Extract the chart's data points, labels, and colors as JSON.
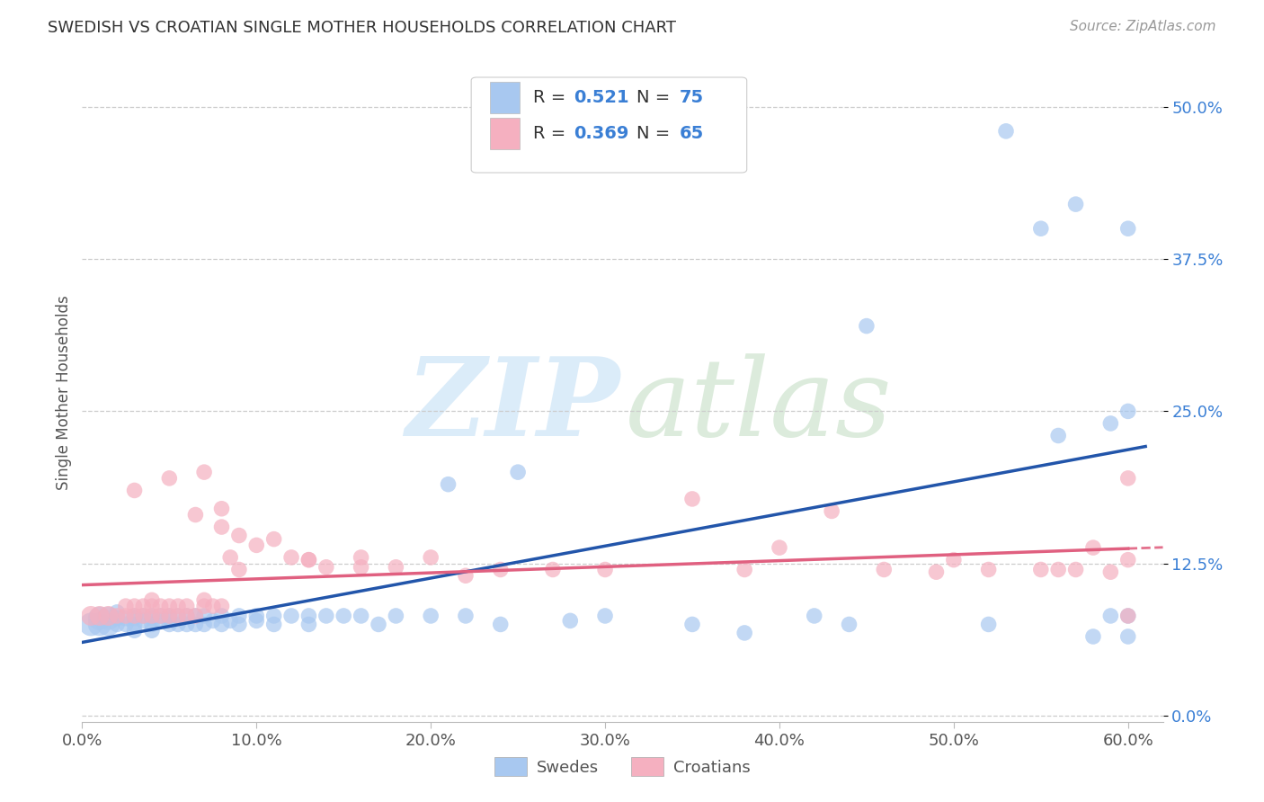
{
  "title": "SWEDISH VS CROATIAN SINGLE MOTHER HOUSEHOLDS CORRELATION CHART",
  "source": "Source: ZipAtlas.com",
  "ylabel": "Single Mother Households",
  "xlim": [
    0.0,
    0.62
  ],
  "ylim": [
    -0.005,
    0.535
  ],
  "yticks": [
    0.0,
    0.125,
    0.25,
    0.375,
    0.5
  ],
  "ytick_labels": [
    "0.0%",
    "12.5%",
    "25.0%",
    "37.5%",
    "50.0%"
  ],
  "xticks": [
    0.0,
    0.1,
    0.2,
    0.3,
    0.4,
    0.5,
    0.6
  ],
  "xtick_labels": [
    "0.0%",
    "10.0%",
    "20.0%",
    "30.0%",
    "40.0%",
    "50.0%",
    "60.0%"
  ],
  "swedes_color": "#a8c8f0",
  "croatians_color": "#f5b0c0",
  "swedes_line_color": "#2255aa",
  "croatians_line_color": "#e06080",
  "blue_text_color": "#3a7fd5",
  "R_swedes": 0.521,
  "N_swedes": 75,
  "R_croatians": 0.369,
  "N_croatians": 65,
  "background_color": "#ffffff",
  "grid_color": "#cccccc",
  "swedes_x": [
    0.005,
    0.01,
    0.01,
    0.015,
    0.015,
    0.02,
    0.02,
    0.02,
    0.025,
    0.025,
    0.03,
    0.03,
    0.03,
    0.03,
    0.035,
    0.035,
    0.04,
    0.04,
    0.04,
    0.04,
    0.045,
    0.045,
    0.05,
    0.05,
    0.05,
    0.055,
    0.055,
    0.06,
    0.06,
    0.065,
    0.065,
    0.07,
    0.07,
    0.075,
    0.08,
    0.08,
    0.085,
    0.09,
    0.09,
    0.1,
    0.1,
    0.11,
    0.11,
    0.12,
    0.13,
    0.13,
    0.14,
    0.15,
    0.16,
    0.17,
    0.18,
    0.2,
    0.22,
    0.24,
    0.28,
    0.3,
    0.35,
    0.38,
    0.42,
    0.44,
    0.52,
    0.53,
    0.55,
    0.57,
    0.58,
    0.59,
    0.6,
    0.6,
    0.6,
    0.6,
    0.25,
    0.21,
    0.45,
    0.56,
    0.59
  ],
  "swedes_y": [
    0.075,
    0.075,
    0.08,
    0.075,
    0.08,
    0.075,
    0.08,
    0.085,
    0.075,
    0.08,
    0.075,
    0.08,
    0.082,
    0.07,
    0.078,
    0.082,
    0.075,
    0.08,
    0.082,
    0.07,
    0.078,
    0.082,
    0.075,
    0.08,
    0.082,
    0.075,
    0.082,
    0.075,
    0.082,
    0.075,
    0.082,
    0.075,
    0.082,
    0.078,
    0.075,
    0.082,
    0.078,
    0.075,
    0.082,
    0.078,
    0.082,
    0.075,
    0.082,
    0.082,
    0.082,
    0.075,
    0.082,
    0.082,
    0.082,
    0.075,
    0.082,
    0.082,
    0.082,
    0.075,
    0.078,
    0.082,
    0.075,
    0.068,
    0.082,
    0.075,
    0.075,
    0.48,
    0.4,
    0.42,
    0.065,
    0.24,
    0.25,
    0.082,
    0.4,
    0.065,
    0.2,
    0.19,
    0.32,
    0.23,
    0.082
  ],
  "swedes_large": [
    0,
    1,
    0,
    0,
    0,
    0,
    0,
    0,
    0,
    0,
    0,
    0,
    0,
    0,
    0,
    0,
    0,
    0,
    0,
    0,
    0,
    0,
    0,
    0,
    0,
    0,
    0,
    0,
    0,
    0,
    0,
    0,
    0,
    0,
    0,
    0,
    0,
    0,
    0,
    0,
    0,
    0,
    0,
    0,
    0,
    0,
    0,
    0,
    0,
    0,
    0,
    0,
    0,
    0,
    0,
    0,
    0,
    0,
    0,
    0,
    0,
    0,
    0,
    0,
    0,
    0,
    0,
    0,
    0,
    0,
    0,
    0,
    0,
    0,
    0
  ],
  "croatians_x": [
    0.005,
    0.01,
    0.015,
    0.02,
    0.025,
    0.025,
    0.03,
    0.03,
    0.035,
    0.035,
    0.04,
    0.04,
    0.04,
    0.045,
    0.045,
    0.05,
    0.05,
    0.055,
    0.055,
    0.06,
    0.06,
    0.065,
    0.07,
    0.07,
    0.075,
    0.08,
    0.08,
    0.085,
    0.09,
    0.1,
    0.11,
    0.12,
    0.13,
    0.14,
    0.16,
    0.18,
    0.2,
    0.22,
    0.24,
    0.27,
    0.3,
    0.35,
    0.38,
    0.4,
    0.43,
    0.46,
    0.49,
    0.5,
    0.52,
    0.55,
    0.56,
    0.57,
    0.58,
    0.59,
    0.6,
    0.6,
    0.6,
    0.03,
    0.05,
    0.065,
    0.07,
    0.08,
    0.09,
    0.13,
    0.16
  ],
  "croatians_y": [
    0.082,
    0.082,
    0.082,
    0.082,
    0.082,
    0.09,
    0.082,
    0.09,
    0.082,
    0.09,
    0.082,
    0.09,
    0.095,
    0.082,
    0.09,
    0.082,
    0.09,
    0.082,
    0.09,
    0.082,
    0.09,
    0.082,
    0.09,
    0.095,
    0.09,
    0.155,
    0.09,
    0.13,
    0.12,
    0.14,
    0.145,
    0.13,
    0.128,
    0.122,
    0.122,
    0.122,
    0.13,
    0.115,
    0.12,
    0.12,
    0.12,
    0.178,
    0.12,
    0.138,
    0.168,
    0.12,
    0.118,
    0.128,
    0.12,
    0.12,
    0.12,
    0.12,
    0.138,
    0.118,
    0.128,
    0.195,
    0.082,
    0.185,
    0.195,
    0.165,
    0.2,
    0.17,
    0.148,
    0.128,
    0.13
  ]
}
